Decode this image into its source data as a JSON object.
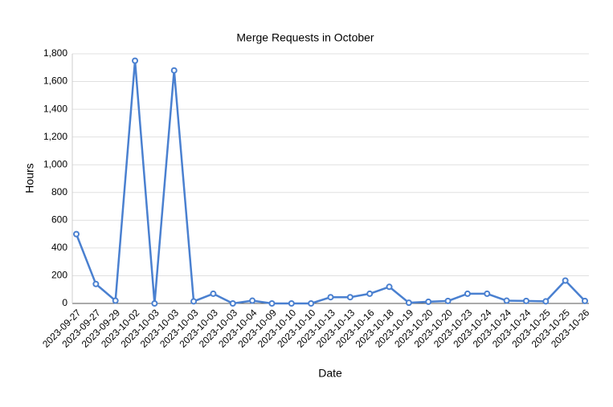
{
  "chart_data": {
    "type": "line",
    "title": "Merge Requests in October",
    "x_label": "Date",
    "y_label": "Hours",
    "categories": [
      "2023-09-27",
      "2023-09-27",
      "2023-09-29",
      "2023-10-02",
      "2023-10-03",
      "2023-10-03",
      "2023-10-03",
      "2023-10-03",
      "2023-10-03",
      "2023-10-04",
      "2023-10-09",
      "2023-10-10",
      "2023-10-10",
      "2023-10-13",
      "2023-10-13",
      "2023-10-16",
      "2023-10-18",
      "2023-10-19",
      "2023-10-20",
      "2023-10-20",
      "2023-10-23",
      "2023-10-24",
      "2023-10-24",
      "2023-10-24",
      "2023-10-25",
      "2023-10-25",
      "2023-10-26"
    ],
    "values": [
      500,
      140,
      20,
      1750,
      0,
      1680,
      15,
      70,
      0,
      20,
      0,
      0,
      0,
      45,
      45,
      70,
      120,
      5,
      12,
      18,
      70,
      70,
      20,
      18,
      15,
      165,
      18
    ],
    "color": "#4a80d0",
    "ylim": [
      0,
      1800
    ],
    "yticks": [
      0,
      200,
      400,
      600,
      800,
      {
        "value": 1000,
        "label": "1,000"
      },
      {
        "value": 1200,
        "label": "1,200"
      },
      {
        "value": 1400,
        "label": "1,400"
      },
      {
        "value": 1600,
        "label": "1,600"
      },
      {
        "value": 1800,
        "label": "1,800"
      }
    ],
    "grid": true
  }
}
